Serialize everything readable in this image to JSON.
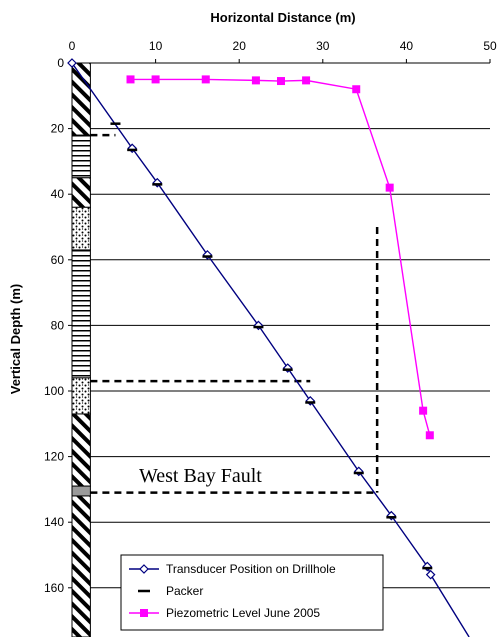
{
  "chart_data": {
    "type": "line",
    "title": "",
    "xlabel": "Horizontal Distance (m)",
    "ylabel": "Vertical Depth (m)",
    "xlim": [
      0,
      50
    ],
    "ylim": [
      0,
      175
    ],
    "y_inverted": true,
    "x_axis_position": "top",
    "x_ticks": [
      "0",
      "10",
      "20",
      "30",
      "40",
      "50"
    ],
    "y_ticks": [
      "0",
      "20",
      "40",
      "60",
      "80",
      "100",
      "120",
      "140",
      "160"
    ],
    "grid": "horizontal",
    "legend_position": "bottom-right",
    "annotation": "West Bay Fault",
    "series": [
      {
        "name": "Transducer Position on Drillhole",
        "color": "#000080",
        "marker": "open-diamond",
        "x": [
          0,
          7.2,
          10.2,
          16.2,
          22.3,
          25.8,
          28.5,
          34.3,
          38.2,
          42.5,
          42.9,
          47.5
        ],
        "y": [
          0,
          26,
          36.5,
          58.5,
          80,
          93,
          103,
          124.5,
          138,
          153.5,
          156,
          175
        ]
      },
      {
        "name": "Packer",
        "color": "#000000",
        "marker": "short-dash",
        "x": [
          5.2,
          7.2,
          10.2,
          16.2,
          22.3,
          25.8,
          28.5,
          34.3,
          38.2,
          42.5
        ],
        "y": [
          18.5,
          26.5,
          37,
          59,
          80.5,
          93.5,
          103.5,
          125,
          138.5,
          154
        ]
      },
      {
        "name": "Piezometric Level June 2005",
        "color": "#ff00ff",
        "marker": "filled-square",
        "x": [
          7,
          10,
          16,
          22,
          25,
          28,
          34,
          38,
          42,
          42.8
        ],
        "y": [
          5,
          5,
          5,
          5.3,
          5.5,
          5.3,
          8,
          38,
          106,
          113.5
        ]
      }
    ],
    "lithology_column": [
      {
        "top": 0,
        "bottom": 22,
        "pattern": "diagonal"
      },
      {
        "top": 22,
        "bottom": 35,
        "pattern": "horizontal"
      },
      {
        "top": 35,
        "bottom": 44,
        "pattern": "diagonal"
      },
      {
        "top": 44,
        "bottom": 57,
        "pattern": "dotted"
      },
      {
        "top": 57,
        "bottom": 96,
        "pattern": "horizontal"
      },
      {
        "top": 96,
        "bottom": 107,
        "pattern": "dotted"
      },
      {
        "top": 107,
        "bottom": 129,
        "pattern": "diagonal"
      },
      {
        "top": 129,
        "bottom": 132,
        "pattern": "gray"
      },
      {
        "top": 132,
        "bottom": 175,
        "pattern": "diagonal"
      }
    ],
    "dashed_guides": [
      {
        "x": [
          2.2,
          5.2
        ],
        "y": [
          22,
          22
        ]
      },
      {
        "x": [
          2.2,
          28.5
        ],
        "y": [
          97,
          97
        ]
      },
      {
        "x": [
          2.2,
          36.5
        ],
        "y": [
          131,
          131
        ]
      },
      {
        "x": [
          36.5,
          36.5
        ],
        "y": [
          50,
          131
        ]
      }
    ]
  }
}
